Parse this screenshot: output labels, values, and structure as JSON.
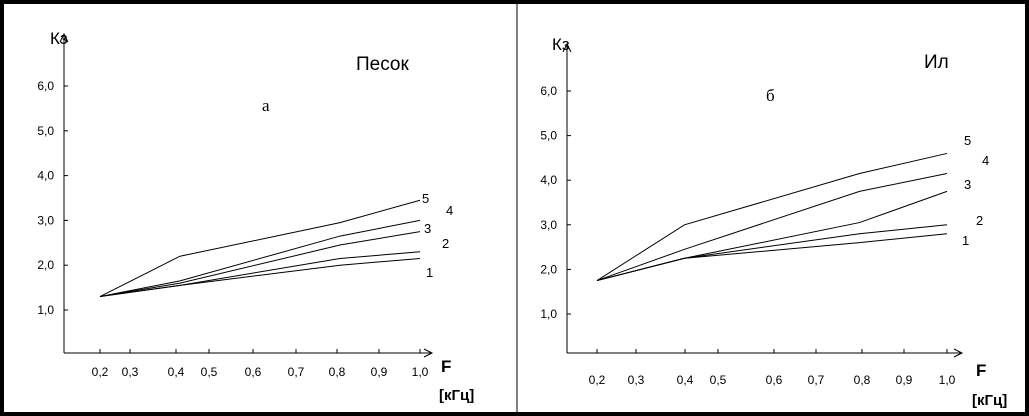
{
  "chart_data": [
    {
      "type": "line",
      "title": "Песок",
      "panel_letter": "а",
      "ylabel": "Кз",
      "xlabel": "F",
      "xunit": "[кГц]",
      "xticks": [
        "0,2",
        "0,3",
        "0,4",
        "0,5",
        "0,6",
        "0,7",
        "0,8",
        "0,9",
        "1,0"
      ],
      "yticks": [
        "1,0",
        "2,0",
        "3,0",
        "4,0",
        "5,0",
        "6,0"
      ],
      "xlim": [
        0.2,
        1.0
      ],
      "ylim": [
        1.0,
        6.0
      ],
      "grid": false,
      "series": [
        {
          "name": "1",
          "x": [
            0.2,
            0.4,
            0.8,
            1.0
          ],
          "y": [
            1.3,
            1.55,
            2.0,
            2.15
          ]
        },
        {
          "name": "2",
          "x": [
            0.2,
            0.4,
            0.8,
            1.0
          ],
          "y": [
            1.3,
            1.55,
            2.15,
            2.3
          ]
        },
        {
          "name": "3",
          "x": [
            0.2,
            0.4,
            0.8,
            1.0
          ],
          "y": [
            1.3,
            1.6,
            2.45,
            2.75
          ]
        },
        {
          "name": "4",
          "x": [
            0.2,
            0.4,
            0.8,
            1.0
          ],
          "y": [
            1.3,
            1.65,
            2.65,
            3.0
          ]
        },
        {
          "name": "5",
          "x": [
            0.2,
            0.4,
            0.8,
            1.0
          ],
          "y": [
            1.3,
            2.2,
            2.95,
            3.45
          ]
        }
      ]
    },
    {
      "type": "line",
      "title": "Ил",
      "panel_letter": "б",
      "ylabel": "Кз",
      "xlabel": "F",
      "xunit": "[кГц]",
      "xticks": [
        "0,2",
        "0,3",
        "0,4",
        "0,5",
        "0,6",
        "0,7",
        "0,8",
        "0,9",
        "1,0"
      ],
      "yticks": [
        "1,0",
        "2,0",
        "3,0",
        "4,0",
        "5,0",
        "6,0"
      ],
      "xlim": [
        0.2,
        1.0
      ],
      "ylim": [
        1.0,
        6.0
      ],
      "grid": false,
      "series": [
        {
          "name": "1",
          "x": [
            0.2,
            0.4,
            0.8,
            1.0
          ],
          "y": [
            1.75,
            2.25,
            2.6,
            2.8
          ]
        },
        {
          "name": "2",
          "x": [
            0.2,
            0.4,
            0.8,
            1.0
          ],
          "y": [
            1.75,
            2.25,
            2.8,
            3.0
          ]
        },
        {
          "name": "3",
          "x": [
            0.2,
            0.4,
            0.8,
            1.0
          ],
          "y": [
            1.75,
            2.25,
            3.05,
            3.75
          ]
        },
        {
          "name": "4",
          "x": [
            0.2,
            0.4,
            0.8,
            1.0
          ],
          "y": [
            1.75,
            2.45,
            3.75,
            4.15
          ]
        },
        {
          "name": "5",
          "x": [
            0.2,
            0.4,
            0.8,
            1.0
          ],
          "y": [
            1.75,
            3.0,
            4.15,
            4.6
          ]
        }
      ]
    }
  ]
}
